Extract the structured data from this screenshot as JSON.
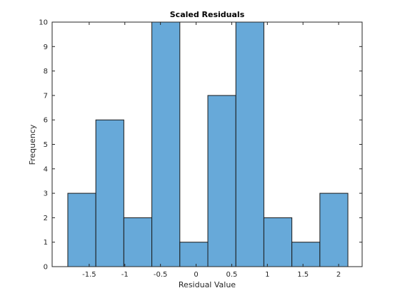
{
  "chart_data": {
    "type": "bar",
    "title": "Scaled Residuals",
    "xlabel": "Residual Value",
    "ylabel": "Frequency",
    "bin_edges": [
      -1.8,
      -1.407,
      -1.014,
      -0.621,
      -0.228,
      0.165,
      0.558,
      0.951,
      1.344,
      1.737,
      2.13
    ],
    "values": [
      3,
      6,
      2,
      10,
      1,
      7,
      10,
      2,
      1,
      3
    ],
    "xlim": [
      -2.02,
      2.33
    ],
    "ylim": [
      0,
      10
    ],
    "xticks": [
      -1.5,
      -1,
      -0.5,
      0,
      0.5,
      1,
      1.5,
      2
    ],
    "xtick_labels": [
      "-1.5",
      "-1",
      "-0.5",
      "0",
      "0.5",
      "1",
      "1.5",
      "2"
    ],
    "yticks": [
      0,
      1,
      2,
      3,
      4,
      5,
      6,
      7,
      8,
      9,
      10
    ],
    "ytick_labels": [
      "0",
      "1",
      "2",
      "3",
      "4",
      "5",
      "6",
      "7",
      "8",
      "9",
      "10"
    ],
    "bar_color": "#67a9d9",
    "edge_color": "#1a1a1a",
    "grid": false
  }
}
